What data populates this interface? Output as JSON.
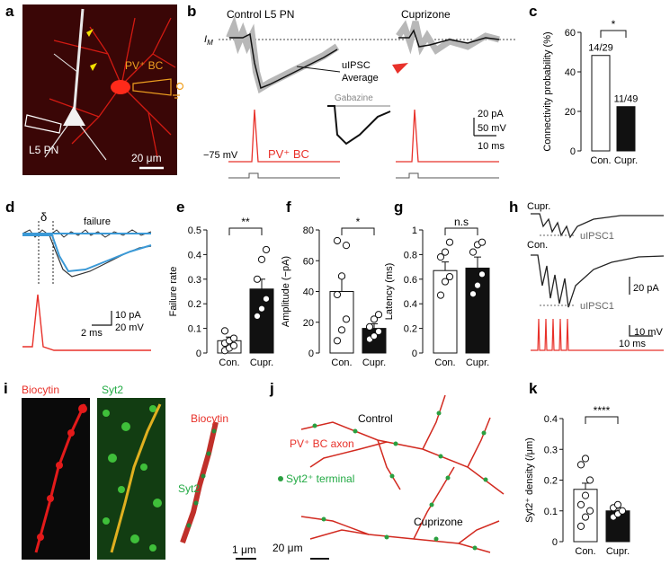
{
  "panels": {
    "a": {
      "letter": "a",
      "cell_label": "L5 PN",
      "bc_label": "PV⁺ BC",
      "scale": "20 μm"
    },
    "b": {
      "letter": "b",
      "control_title": "Control L5 PN",
      "cupri_title": "Cuprizone",
      "im_label": "I",
      "im_sub": "M",
      "uipsc_label": "uIPSC",
      "average_label": "Average",
      "gabazine_label": "Gabazine",
      "vm_label": "−75 mV",
      "bc_label": "PV⁺ BC",
      "scale_pa": "20 pA",
      "scale_mv": "50 mV",
      "scale_ms": "10 ms"
    },
    "d": {
      "letter": "d",
      "failure_label": "failure",
      "delta": "δ",
      "scale_pa": "10 pA",
      "scale_mv": "20 mV",
      "scale_ms": "2 ms"
    },
    "h": {
      "letter": "h",
      "cupri_label": "Cupr.",
      "control_label": "Con.",
      "uipsc1_a": "uIPSC1",
      "uipsc1_b": "uIPSC1",
      "scale_pa": "20 pA",
      "scale_mv": "10 mV",
      "scale_ms": "10 ms"
    },
    "i": {
      "letter": "i",
      "biocytin_label": "Biocytin",
      "syt2_label": "Syt2",
      "biocytin_label2": "Biocytin",
      "syt2_label2": "Syt2",
      "scale": "1 μm"
    },
    "j": {
      "letter": "j",
      "control_label": "Control",
      "axon_label": "PV⁺ BC axon",
      "terminal_label": "Syt2⁺ terminal",
      "cupri_label": "Cuprizone",
      "scale": "20 μm"
    }
  },
  "chart_data": [
    {
      "panel": "c",
      "type": "bar",
      "categories": [
        "Con.",
        "Cupr."
      ],
      "values": [
        48.3,
        22.4
      ],
      "bar_labels": [
        "14/29",
        "11/49"
      ],
      "ylabel": "Connectivity probability (%)",
      "ylim": [
        0,
        60
      ],
      "yticks": [
        0,
        20,
        40,
        60
      ],
      "sig": "*",
      "fills": [
        "#ffffff",
        "#111111"
      ]
    },
    {
      "panel": "e",
      "type": "bar",
      "categories": [
        "Con.",
        "Cupr."
      ],
      "values": [
        0.05,
        0.26
      ],
      "errors": [
        0.015,
        0.04
      ],
      "ylabel": "Failure rate",
      "ylim": [
        0,
        0.5
      ],
      "yticks": [
        0,
        0.1,
        0.2,
        0.3,
        0.4,
        0.5
      ],
      "sig": "**",
      "points": [
        [
          0.01,
          0.02,
          0.03,
          0.04,
          0.05,
          0.06,
          0.09
        ],
        [
          0.15,
          0.18,
          0.22,
          0.3,
          0.38,
          0.42
        ]
      ],
      "fills": [
        "#ffffff",
        "#111111"
      ]
    },
    {
      "panel": "f",
      "type": "bar",
      "categories": [
        "Con.",
        "Cupr."
      ],
      "values": [
        40,
        16
      ],
      "errors": [
        9,
        3
      ],
      "ylabel": "Amplitude (−pA)",
      "ylim": [
        0,
        80
      ],
      "yticks": [
        0,
        20,
        40,
        60,
        80
      ],
      "sig": "*",
      "points": [
        [
          8,
          15,
          22,
          38,
          50,
          70,
          73
        ],
        [
          9,
          11,
          14,
          17,
          22,
          25
        ]
      ],
      "fills": [
        "#ffffff",
        "#111111"
      ]
    },
    {
      "panel": "g",
      "type": "bar",
      "categories": [
        "Con.",
        "Cupr."
      ],
      "values": [
        0.67,
        0.69
      ],
      "errors": [
        0.07,
        0.09
      ],
      "ylabel": "Latency (ms)",
      "ylim": [
        0,
        1.0
      ],
      "yticks": [
        0,
        0.2,
        0.4,
        0.6,
        0.8,
        1.0
      ],
      "sig": "n.s",
      "points": [
        [
          0.47,
          0.58,
          0.62,
          0.78,
          0.82,
          0.9
        ],
        [
          0.48,
          0.55,
          0.64,
          0.82,
          0.88,
          0.9
        ]
      ],
      "fills": [
        "#ffffff",
        "#111111"
      ]
    },
    {
      "panel": "k",
      "type": "bar",
      "categories": [
        "Con.",
        "Cupr."
      ],
      "values": [
        0.17,
        0.1
      ],
      "errors": [
        0.02,
        0.01
      ],
      "ylabel": "Syt2⁺ density (/μm)",
      "ylim": [
        0,
        0.4
      ],
      "yticks": [
        0,
        0.1,
        0.2,
        0.3,
        0.4
      ],
      "sig": "****",
      "points": [
        [
          0.05,
          0.08,
          0.1,
          0.12,
          0.15,
          0.2,
          0.25,
          0.27
        ],
        [
          0.08,
          0.09,
          0.1,
          0.11,
          0.12
        ]
      ],
      "fills": [
        "#ffffff",
        "#111111"
      ]
    }
  ]
}
